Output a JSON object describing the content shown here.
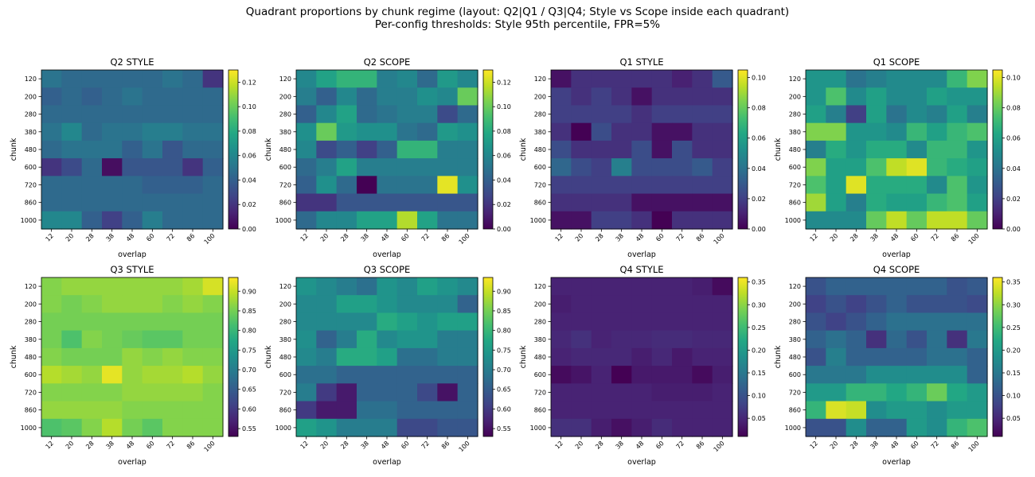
{
  "figure": {
    "title_line1": "Quadrant proportions by chunk regime (layout: Q2|Q1 / Q3|Q4; Style vs Scope inside each quadrant)",
    "title_line2": "Per-config thresholds: Style 95th percentile, FPR=5%"
  },
  "colors": {
    "colormap": "viridis",
    "background": "#ffffff"
  },
  "chart_data": [
    {
      "type": "heatmap",
      "title": "Q2 STYLE",
      "xlabel": "overlap",
      "ylabel": "chunk",
      "x": [
        "12",
        "20",
        "28",
        "38",
        "48",
        "60",
        "72",
        "86",
        "100"
      ],
      "y": [
        "120",
        "200",
        "280",
        "380",
        "480",
        "600",
        "720",
        "860",
        "1000"
      ],
      "vmin": 0.0,
      "vmax": 0.13,
      "colorbar_ticks": [
        0.0,
        0.02,
        0.04,
        0.06,
        0.08,
        0.1,
        0.12
      ],
      "colorbar_labels": [
        "0.00",
        "0.02",
        "0.04",
        "0.06",
        "0.08",
        "0.10",
        "0.12"
      ],
      "z": [
        [
          0.05,
          0.045,
          0.045,
          0.045,
          0.045,
          0.045,
          0.05,
          0.045,
          0.02
        ],
        [
          0.04,
          0.045,
          0.04,
          0.045,
          0.05,
          0.045,
          0.045,
          0.045,
          0.045
        ],
        [
          0.045,
          0.045,
          0.045,
          0.045,
          0.045,
          0.045,
          0.045,
          0.045,
          0.045
        ],
        [
          0.05,
          0.06,
          0.045,
          0.05,
          0.05,
          0.055,
          0.055,
          0.05,
          0.05
        ],
        [
          0.045,
          0.05,
          0.05,
          0.05,
          0.04,
          0.05,
          0.035,
          0.045,
          0.045
        ],
        [
          0.02,
          0.03,
          0.045,
          0.005,
          0.035,
          0.035,
          0.035,
          0.02,
          0.04
        ],
        [
          0.045,
          0.045,
          0.045,
          0.045,
          0.045,
          0.04,
          0.04,
          0.04,
          0.045
        ],
        [
          0.045,
          0.045,
          0.045,
          0.045,
          0.045,
          0.045,
          0.045,
          0.045,
          0.045
        ],
        [
          0.06,
          0.06,
          0.04,
          0.025,
          0.04,
          0.055,
          0.045,
          0.045,
          0.045
        ]
      ]
    },
    {
      "type": "heatmap",
      "title": "Q2 SCOPE",
      "xlabel": "overlap",
      "ylabel": "chunk",
      "x": [
        "12",
        "20",
        "28",
        "38",
        "48",
        "60",
        "72",
        "86",
        "100"
      ],
      "y": [
        "120",
        "200",
        "280",
        "380",
        "480",
        "600",
        "720",
        "860",
        "1000"
      ],
      "vmin": 0.0,
      "vmax": 0.13,
      "colorbar_ticks": [
        0.0,
        0.02,
        0.04,
        0.06,
        0.08,
        0.1,
        0.12
      ],
      "colorbar_labels": [
        "0.00",
        "0.02",
        "0.04",
        "0.06",
        "0.08",
        "0.10",
        "0.12"
      ],
      "z": [
        [
          0.06,
          0.075,
          0.085,
          0.085,
          0.055,
          0.06,
          0.045,
          0.07,
          0.06
        ],
        [
          0.055,
          0.04,
          0.06,
          0.045,
          0.055,
          0.055,
          0.065,
          0.06,
          0.1
        ],
        [
          0.04,
          0.06,
          0.075,
          0.045,
          0.05,
          0.055,
          0.055,
          0.03,
          0.045
        ],
        [
          0.065,
          0.1,
          0.07,
          0.065,
          0.065,
          0.05,
          0.045,
          0.07,
          0.065
        ],
        [
          0.06,
          0.03,
          0.04,
          0.025,
          0.04,
          0.085,
          0.085,
          0.055,
          0.055
        ],
        [
          0.045,
          0.055,
          0.075,
          0.055,
          0.055,
          0.055,
          0.055,
          0.055,
          0.055
        ],
        [
          0.04,
          0.065,
          0.045,
          0.0,
          0.05,
          0.05,
          0.05,
          0.125,
          0.065
        ],
        [
          0.02,
          0.02,
          0.035,
          0.035,
          0.035,
          0.035,
          0.035,
          0.035,
          0.035
        ],
        [
          0.045,
          0.06,
          0.06,
          0.075,
          0.075,
          0.115,
          0.075,
          0.05,
          0.05
        ]
      ]
    },
    {
      "type": "heatmap",
      "title": "Q1 STYLE",
      "xlabel": "overlap",
      "ylabel": "chunk",
      "x": [
        "12",
        "20",
        "28",
        "38",
        "48",
        "60",
        "72",
        "86",
        "100"
      ],
      "y": [
        "120",
        "200",
        "280",
        "380",
        "480",
        "600",
        "720",
        "860",
        "1000"
      ],
      "vmin": 0.0,
      "vmax": 0.105,
      "colorbar_ticks": [
        0.0,
        0.02,
        0.04,
        0.06,
        0.08,
        0.1
      ],
      "colorbar_labels": [
        "0.00",
        "0.02",
        "0.04",
        "0.06",
        "0.08",
        "0.10"
      ],
      "z": [
        [
          0.005,
          0.015,
          0.015,
          0.015,
          0.015,
          0.015,
          0.01,
          0.015,
          0.03
        ],
        [
          0.02,
          0.015,
          0.02,
          0.015,
          0.005,
          0.015,
          0.015,
          0.015,
          0.015
        ],
        [
          0.02,
          0.02,
          0.02,
          0.02,
          0.015,
          0.02,
          0.02,
          0.02,
          0.02
        ],
        [
          0.015,
          0.0,
          0.025,
          0.015,
          0.015,
          0.005,
          0.005,
          0.015,
          0.015
        ],
        [
          0.025,
          0.015,
          0.015,
          0.015,
          0.025,
          0.005,
          0.025,
          0.015,
          0.015
        ],
        [
          0.035,
          0.025,
          0.02,
          0.045,
          0.025,
          0.025,
          0.025,
          0.03,
          0.02
        ],
        [
          0.02,
          0.02,
          0.02,
          0.02,
          0.02,
          0.02,
          0.02,
          0.02,
          0.02
        ],
        [
          0.015,
          0.015,
          0.015,
          0.015,
          0.005,
          0.005,
          0.005,
          0.005,
          0.005
        ],
        [
          0.005,
          0.005,
          0.02,
          0.02,
          0.015,
          0.0,
          0.015,
          0.015,
          0.015
        ]
      ]
    },
    {
      "type": "heatmap",
      "title": "Q1 SCOPE",
      "xlabel": "overlap",
      "ylabel": "chunk",
      "x": [
        "12",
        "20",
        "28",
        "38",
        "48",
        "60",
        "72",
        "86",
        "100"
      ],
      "y": [
        "120",
        "200",
        "280",
        "380",
        "480",
        "600",
        "720",
        "860",
        "1000"
      ],
      "vmin": 0.0,
      "vmax": 0.105,
      "colorbar_ticks": [
        0.0,
        0.02,
        0.04,
        0.06,
        0.08,
        0.1
      ],
      "colorbar_labels": [
        "0.00",
        "0.02",
        "0.04",
        "0.06",
        "0.08",
        "0.10"
      ],
      "z": [
        [
          0.055,
          0.055,
          0.04,
          0.045,
          0.05,
          0.05,
          0.05,
          0.07,
          0.085
        ],
        [
          0.055,
          0.075,
          0.05,
          0.06,
          0.05,
          0.05,
          0.06,
          0.055,
          0.055
        ],
        [
          0.06,
          0.045,
          0.02,
          0.06,
          0.04,
          0.05,
          0.045,
          0.06,
          0.045
        ],
        [
          0.085,
          0.085,
          0.055,
          0.055,
          0.05,
          0.07,
          0.06,
          0.07,
          0.075
        ],
        [
          0.045,
          0.065,
          0.055,
          0.065,
          0.065,
          0.05,
          0.07,
          0.07,
          0.055
        ],
        [
          0.085,
          0.06,
          0.06,
          0.075,
          0.095,
          0.1,
          0.07,
          0.065,
          0.06
        ],
        [
          0.075,
          0.06,
          0.1,
          0.065,
          0.065,
          0.065,
          0.05,
          0.075,
          0.055
        ],
        [
          0.09,
          0.06,
          0.045,
          0.065,
          0.06,
          0.06,
          0.07,
          0.075,
          0.06
        ],
        [
          0.05,
          0.05,
          0.05,
          0.08,
          0.095,
          0.08,
          0.095,
          0.095,
          0.08
        ]
      ]
    },
    {
      "type": "heatmap",
      "title": "Q3 STYLE",
      "xlabel": "overlap",
      "ylabel": "chunk",
      "x": [
        "12",
        "20",
        "28",
        "38",
        "48",
        "60",
        "72",
        "86",
        "100"
      ],
      "y": [
        "120",
        "200",
        "280",
        "380",
        "480",
        "600",
        "720",
        "860",
        "1000"
      ],
      "vmin": 0.53,
      "vmax": 0.935,
      "colorbar_ticks": [
        0.55,
        0.6,
        0.65,
        0.7,
        0.75,
        0.8,
        0.85,
        0.9
      ],
      "colorbar_labels": [
        "0.55",
        "0.60",
        "0.65",
        "0.70",
        "0.75",
        "0.80",
        "0.85",
        "0.90"
      ],
      "z": [
        [
          0.86,
          0.87,
          0.87,
          0.87,
          0.87,
          0.87,
          0.87,
          0.88,
          0.91
        ],
        [
          0.86,
          0.85,
          0.86,
          0.87,
          0.87,
          0.87,
          0.86,
          0.87,
          0.86
        ],
        [
          0.85,
          0.85,
          0.85,
          0.85,
          0.85,
          0.85,
          0.85,
          0.85,
          0.85
        ],
        [
          0.85,
          0.82,
          0.86,
          0.85,
          0.84,
          0.83,
          0.83,
          0.85,
          0.85
        ],
        [
          0.86,
          0.85,
          0.85,
          0.85,
          0.87,
          0.86,
          0.87,
          0.86,
          0.86
        ],
        [
          0.89,
          0.88,
          0.87,
          0.92,
          0.87,
          0.88,
          0.88,
          0.89,
          0.87
        ],
        [
          0.86,
          0.86,
          0.86,
          0.86,
          0.87,
          0.87,
          0.87,
          0.87,
          0.86
        ],
        [
          0.87,
          0.87,
          0.87,
          0.87,
          0.86,
          0.86,
          0.86,
          0.86,
          0.86
        ],
        [
          0.82,
          0.83,
          0.86,
          0.89,
          0.85,
          0.83,
          0.86,
          0.86,
          0.86
        ]
      ]
    },
    {
      "type": "heatmap",
      "title": "Q3 SCOPE",
      "xlabel": "overlap",
      "ylabel": "chunk",
      "x": [
        "12",
        "20",
        "28",
        "38",
        "48",
        "60",
        "72",
        "86",
        "100"
      ],
      "y": [
        "120",
        "200",
        "280",
        "380",
        "480",
        "600",
        "720",
        "860",
        "1000"
      ],
      "vmin": 0.53,
      "vmax": 0.935,
      "colorbar_ticks": [
        0.55,
        0.6,
        0.65,
        0.7,
        0.75,
        0.8,
        0.85,
        0.9
      ],
      "colorbar_labels": [
        "0.55",
        "0.60",
        "0.65",
        "0.70",
        "0.75",
        "0.80",
        "0.85",
        "0.90"
      ],
      "z": [
        [
          0.74,
          0.72,
          0.7,
          0.68,
          0.74,
          0.72,
          0.76,
          0.74,
          0.72
        ],
        [
          0.72,
          0.72,
          0.76,
          0.76,
          0.74,
          0.72,
          0.72,
          0.72,
          0.66
        ],
        [
          0.72,
          0.72,
          0.72,
          0.72,
          0.78,
          0.76,
          0.74,
          0.76,
          0.76
        ],
        [
          0.73,
          0.66,
          0.7,
          0.78,
          0.72,
          0.74,
          0.74,
          0.7,
          0.7
        ],
        [
          0.72,
          0.7,
          0.78,
          0.78,
          0.76,
          0.68,
          0.68,
          0.7,
          0.7
        ],
        [
          0.68,
          0.68,
          0.66,
          0.66,
          0.66,
          0.66,
          0.66,
          0.66,
          0.66
        ],
        [
          0.7,
          0.6,
          0.56,
          0.66,
          0.66,
          0.66,
          0.62,
          0.55,
          0.66
        ],
        [
          0.6,
          0.56,
          0.56,
          0.68,
          0.68,
          0.66,
          0.66,
          0.66,
          0.66
        ],
        [
          0.76,
          0.74,
          0.7,
          0.7,
          0.7,
          0.62,
          0.62,
          0.64,
          0.64
        ]
      ]
    },
    {
      "type": "heatmap",
      "title": "Q4 STYLE",
      "xlabel": "overlap",
      "ylabel": "chunk",
      "x": [
        "12",
        "20",
        "28",
        "38",
        "48",
        "60",
        "72",
        "86",
        "100"
      ],
      "y": [
        "120",
        "200",
        "280",
        "380",
        "480",
        "600",
        "720",
        "860",
        "1000"
      ],
      "vmin": 0.01,
      "vmax": 0.36,
      "colorbar_ticks": [
        0.05,
        0.1,
        0.15,
        0.2,
        0.25,
        0.3,
        0.35
      ],
      "colorbar_labels": [
        "0.05",
        "0.10",
        "0.15",
        "0.20",
        "0.25",
        "0.30",
        "0.35"
      ],
      "z": [
        [
          0.045,
          0.045,
          0.045,
          0.045,
          0.045,
          0.045,
          0.045,
          0.04,
          0.02
        ],
        [
          0.04,
          0.045,
          0.045,
          0.045,
          0.045,
          0.045,
          0.045,
          0.045,
          0.045
        ],
        [
          0.045,
          0.045,
          0.045,
          0.045,
          0.045,
          0.045,
          0.045,
          0.045,
          0.045
        ],
        [
          0.05,
          0.06,
          0.045,
          0.05,
          0.05,
          0.055,
          0.055,
          0.05,
          0.05
        ],
        [
          0.045,
          0.05,
          0.05,
          0.05,
          0.04,
          0.05,
          0.035,
          0.045,
          0.045
        ],
        [
          0.02,
          0.03,
          0.045,
          0.005,
          0.035,
          0.035,
          0.035,
          0.02,
          0.04
        ],
        [
          0.045,
          0.045,
          0.045,
          0.045,
          0.045,
          0.04,
          0.04,
          0.04,
          0.045
        ],
        [
          0.045,
          0.045,
          0.045,
          0.045,
          0.045,
          0.045,
          0.045,
          0.045,
          0.045
        ],
        [
          0.06,
          0.06,
          0.04,
          0.025,
          0.04,
          0.055,
          0.045,
          0.045,
          0.045
        ]
      ]
    },
    {
      "type": "heatmap",
      "title": "Q4 SCOPE",
      "xlabel": "overlap",
      "ylabel": "chunk",
      "x": [
        "12",
        "20",
        "28",
        "38",
        "48",
        "60",
        "72",
        "86",
        "100"
      ],
      "y": [
        "120",
        "200",
        "280",
        "380",
        "480",
        "600",
        "720",
        "860",
        "1000"
      ],
      "vmin": 0.01,
      "vmax": 0.36,
      "colorbar_ticks": [
        0.05,
        0.1,
        0.15,
        0.2,
        0.25,
        0.3,
        0.35
      ],
      "colorbar_labels": [
        "0.05",
        "0.10",
        "0.15",
        "0.20",
        "0.25",
        "0.30",
        "0.35"
      ],
      "z": [
        [
          0.1,
          0.12,
          0.12,
          0.12,
          0.12,
          0.12,
          0.12,
          0.1,
          0.11
        ],
        [
          0.08,
          0.1,
          0.08,
          0.1,
          0.12,
          0.1,
          0.1,
          0.1,
          0.09
        ],
        [
          0.1,
          0.08,
          0.1,
          0.12,
          0.14,
          0.14,
          0.14,
          0.14,
          0.14
        ],
        [
          0.12,
          0.14,
          0.12,
          0.06,
          0.13,
          0.1,
          0.14,
          0.06,
          0.15
        ],
        [
          0.1,
          0.16,
          0.12,
          0.12,
          0.12,
          0.12,
          0.14,
          0.14,
          0.12
        ],
        [
          0.15,
          0.15,
          0.15,
          0.18,
          0.18,
          0.18,
          0.18,
          0.18,
          0.12
        ],
        [
          0.2,
          0.2,
          0.24,
          0.24,
          0.22,
          0.24,
          0.28,
          0.22,
          0.2
        ],
        [
          0.24,
          0.34,
          0.33,
          0.18,
          0.2,
          0.2,
          0.18,
          0.2,
          0.2
        ],
        [
          0.1,
          0.1,
          0.18,
          0.12,
          0.12,
          0.2,
          0.18,
          0.24,
          0.26
        ]
      ]
    }
  ]
}
